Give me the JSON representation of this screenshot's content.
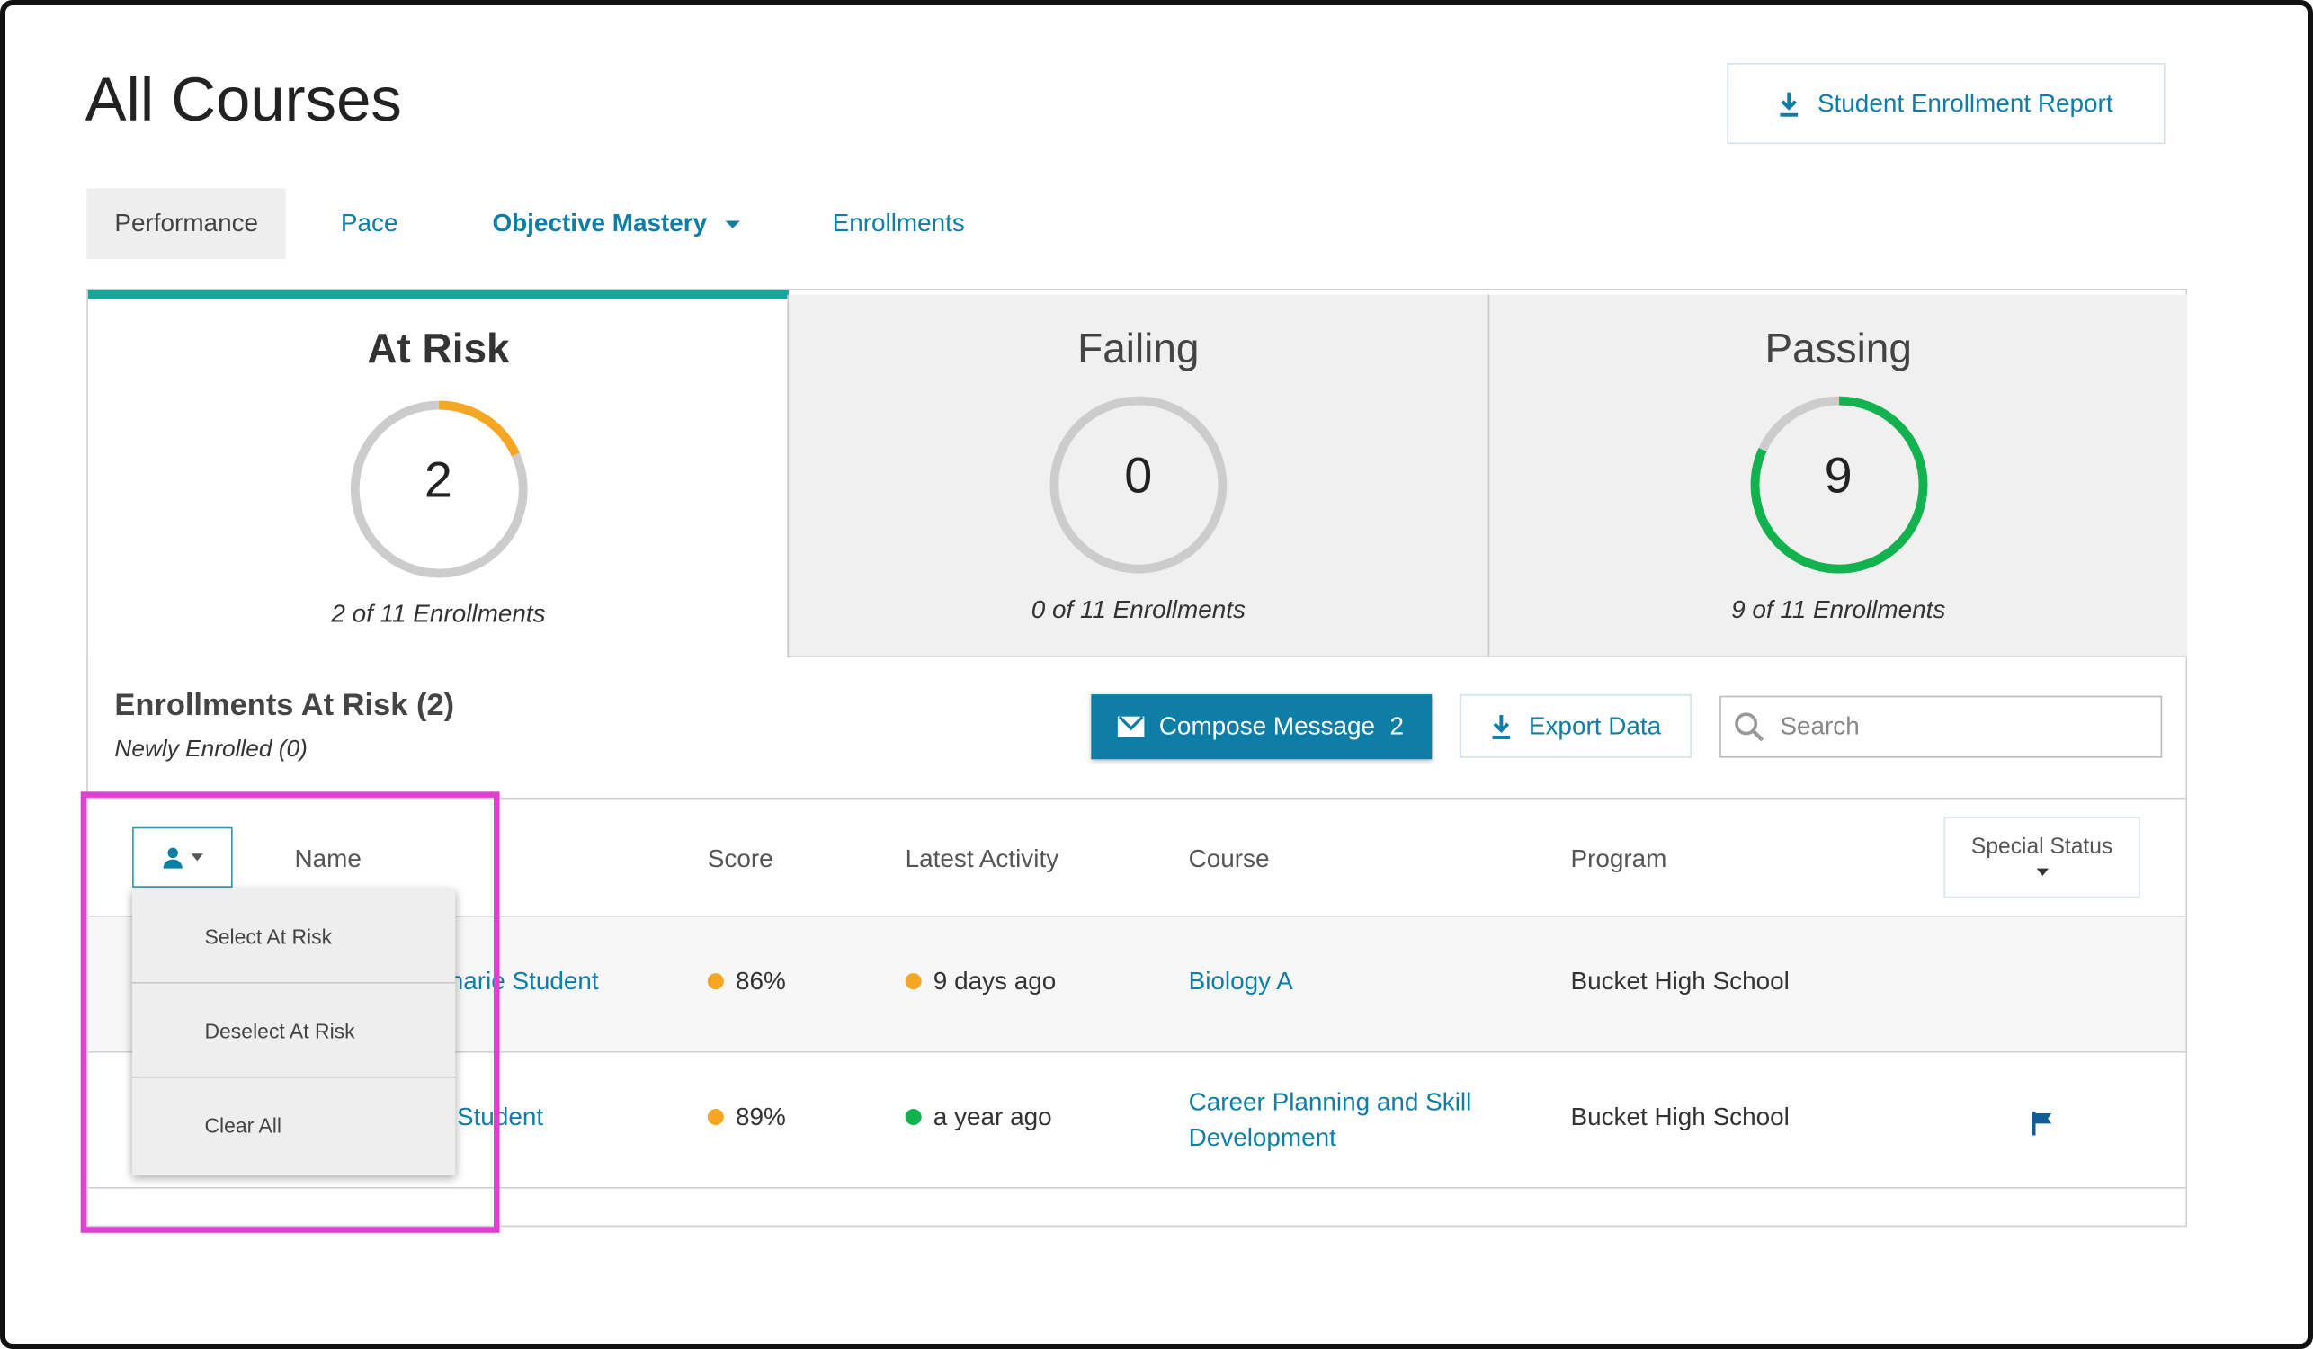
{
  "page": {
    "title": "All Courses"
  },
  "header": {
    "report_button": "Student Enrollment Report"
  },
  "tabs": [
    {
      "label": "Performance",
      "active": true
    },
    {
      "label": "Pace",
      "active": false
    },
    {
      "label": "Objective Mastery",
      "active": false
    },
    {
      "label": "Enrollments",
      "active": false
    }
  ],
  "summary_cards": [
    {
      "title": "At Risk",
      "count": "2",
      "subtitle": "2 of 11 Enrollments",
      "fraction": 0.1818,
      "color": "#f5a623",
      "selected": true
    },
    {
      "title": "Failing",
      "count": "0",
      "subtitle": "0 of 11 Enrollments",
      "fraction": 0,
      "color": "#e74c3c",
      "selected": false
    },
    {
      "title": "Passing",
      "count": "9",
      "subtitle": "9 of 11 Enrollments",
      "fraction": 0.8182,
      "color": "#12b24e",
      "selected": false
    }
  ],
  "section": {
    "title": "Enrollments At Risk (2)",
    "subtitle": "Newly Enrolled (0)",
    "compose_label": "Compose Message",
    "compose_count": "2",
    "export_label": "Export Data",
    "search_placeholder": "Search"
  },
  "table": {
    "columns": {
      "name": "Name",
      "score": "Score",
      "latest_activity": "Latest Activity",
      "course": "Course",
      "program": "Program",
      "special_status": "Special Status"
    },
    "rows": [
      {
        "name_visible": "harie Student",
        "score": "86%",
        "score_color": "#f5a623",
        "activity": "9 days ago",
        "activity_color": "#f5a623",
        "course_line1": "Biology A",
        "course_line2": "",
        "program": "Bucket High School",
        "flagged": false
      },
      {
        "name_visible": "Student",
        "score": "89%",
        "score_color": "#f5a623",
        "activity": "a year ago",
        "activity_color": "#12b24e",
        "course_line1": "Career Planning and Skill",
        "course_line2": "Development",
        "program": "Bucket High School",
        "flagged": true
      }
    ]
  },
  "select_dropdown": {
    "items": [
      "Select At Risk",
      "Deselect At Risk",
      "Clear All"
    ]
  },
  "colors": {
    "accent": "#0e7ea6",
    "teal": "#15a89a",
    "highlight": "#e040d0"
  }
}
